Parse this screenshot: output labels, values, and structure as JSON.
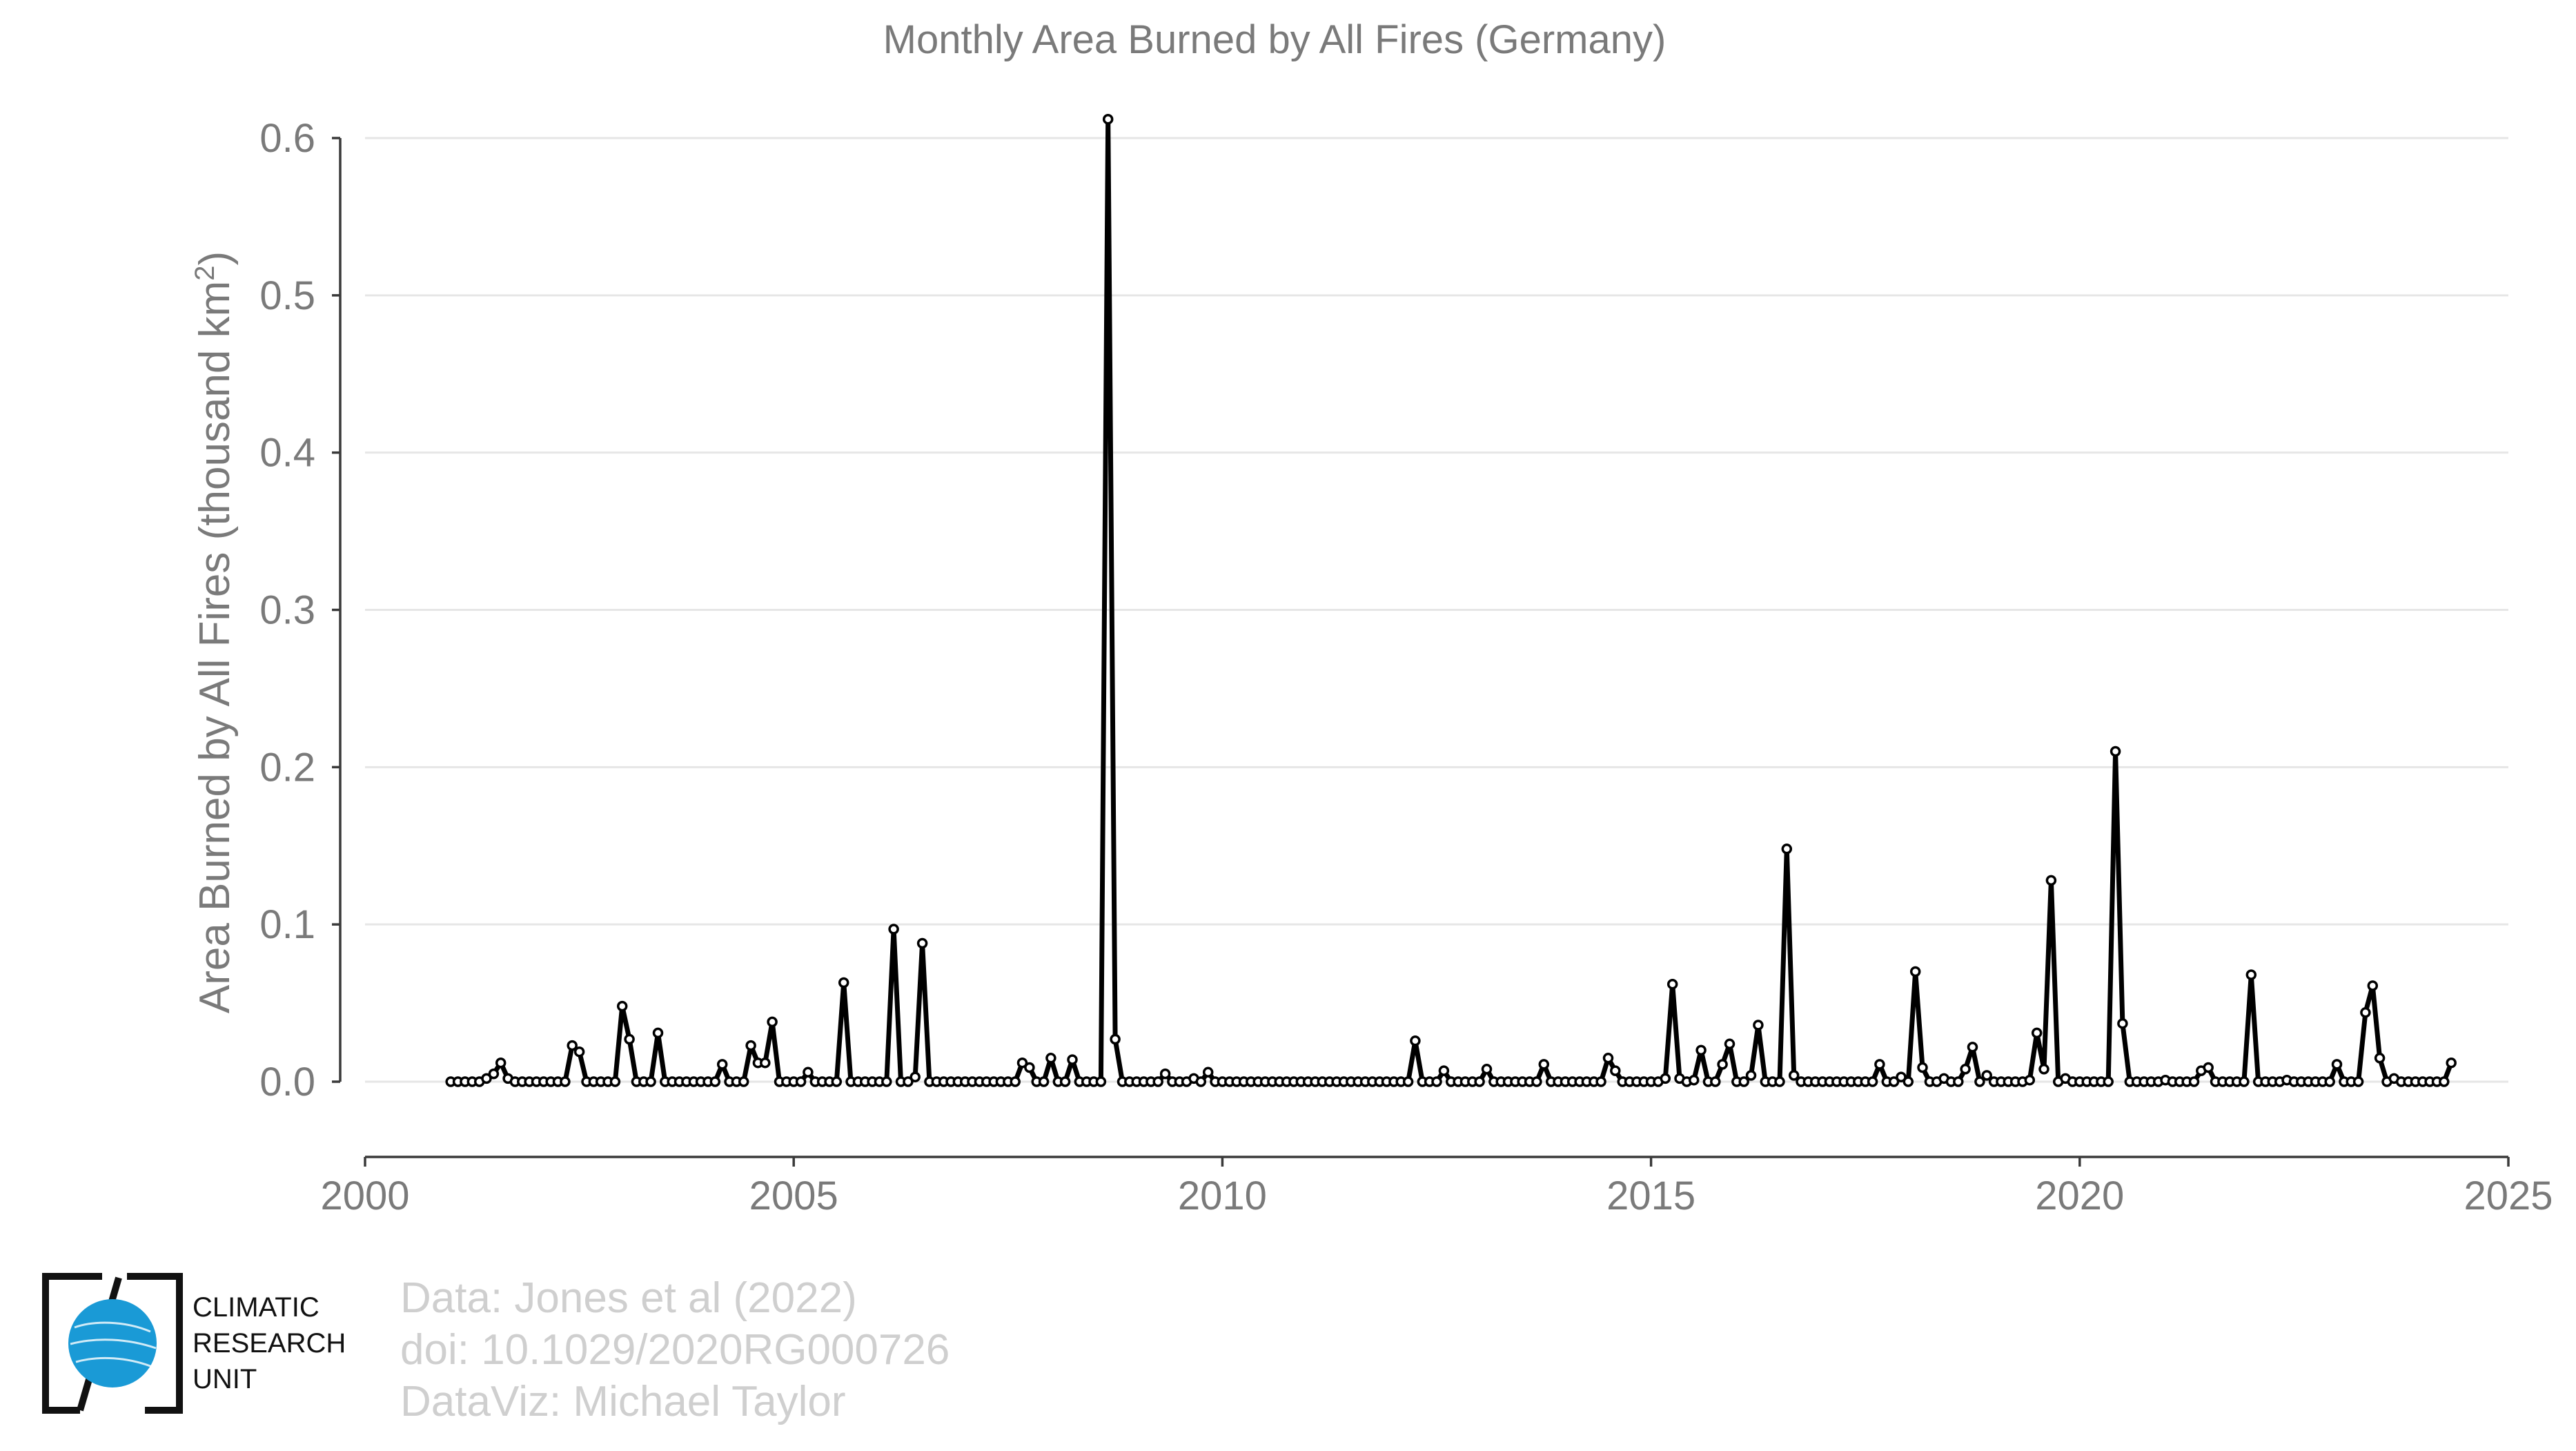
{
  "chart_data": {
    "type": "line",
    "title": "Monthly Area Burned by All Fires (Germany)",
    "ylabel_main": "Area Burned by All Fires (thousand km",
    "ylabel_sup": "2",
    "ylabel_end": ")",
    "xlim": [
      2000,
      2025
    ],
    "ylim": [
      -0.05,
      0.62
    ],
    "xticks": [
      2000,
      2005,
      2010,
      2015,
      2020,
      2025
    ],
    "xtick_labels": [
      "2000",
      "2005",
      "2010",
      "2015",
      "2020",
      "2025"
    ],
    "yticks": [
      0.0,
      0.1,
      0.2,
      0.3,
      0.4,
      0.5,
      0.6
    ],
    "ytick_labels": [
      "0.0",
      "0.1",
      "0.2",
      "0.3",
      "0.4",
      "0.5",
      "0.6"
    ],
    "grid": "horizontal",
    "series": [
      {
        "color": "#000000",
        "x_start": "2001-01",
        "frequency": "monthly",
        "values": [
          0,
          0,
          0,
          0,
          0,
          0.002,
          0.005,
          0.012,
          0.002,
          0,
          0,
          0,
          0,
          0,
          0,
          0,
          0,
          0.023,
          0.019,
          0,
          0,
          0,
          0,
          0,
          0.048,
          0.027,
          0,
          0,
          0,
          0.031,
          0,
          0,
          0,
          0,
          0,
          0,
          0,
          0,
          0.011,
          0,
          0,
          0,
          0.023,
          0.012,
          0.012,
          0.038,
          0,
          0,
          0,
          0,
          0.006,
          0,
          0,
          0,
          0,
          0.063,
          0,
          0,
          0,
          0,
          0,
          0,
          0.097,
          0,
          0,
          0.003,
          0.088,
          0,
          0,
          0,
          0,
          0,
          0,
          0,
          0,
          0,
          0,
          0,
          0,
          0,
          0.012,
          0.009,
          0,
          0,
          0.015,
          0,
          0,
          0.014,
          0,
          0,
          0,
          0,
          0.612,
          0.027,
          0,
          0,
          0,
          0,
          0,
          0,
          0.005,
          0,
          0,
          0,
          0.002,
          0,
          0.006,
          0,
          0,
          0,
          0,
          0,
          0,
          0,
          0,
          0,
          0,
          0,
          0,
          0,
          0,
          0,
          0,
          0,
          0,
          0,
          0,
          0,
          0,
          0,
          0,
          0,
          0,
          0,
          0,
          0.026,
          0,
          0,
          0,
          0.007,
          0,
          0,
          0,
          0,
          0,
          0.008,
          0,
          0,
          0,
          0,
          0,
          0,
          0,
          0.011,
          0,
          0,
          0,
          0,
          0,
          0,
          0,
          0,
          0.015,
          0.007,
          0,
          0,
          0,
          0,
          0,
          0,
          0.002,
          0.062,
          0.002,
          0,
          0.001,
          0.02,
          0,
          0,
          0.011,
          0.024,
          0,
          0,
          0.004,
          0.036,
          0,
          0,
          0,
          0.148,
          0.004,
          0,
          0,
          0,
          0,
          0,
          0,
          0,
          0,
          0,
          0,
          0,
          0.011,
          0,
          0,
          0.003,
          0,
          0.07,
          0.009,
          0,
          0,
          0.002,
          0,
          0,
          0.008,
          0.022,
          0,
          0.004,
          0,
          0,
          0,
          0,
          0,
          0.001,
          0.031,
          0.008,
          0.128,
          0,
          0.002,
          0,
          0,
          0,
          0,
          0,
          0,
          0.21,
          0.037,
          0,
          0,
          0,
          0,
          0,
          0.001,
          0,
          0,
          0,
          0,
          0.007,
          0.009,
          0,
          0,
          0,
          0,
          0,
          0.068,
          0,
          0,
          0,
          0,
          0.001,
          0,
          0,
          0,
          0,
          0,
          0,
          0.011,
          0,
          0,
          0,
          0.044,
          0.061,
          0.015,
          0,
          0.002,
          0,
          0,
          0,
          0,
          0,
          0,
          0,
          0.012
        ]
      }
    ]
  },
  "credits": {
    "line1": "Data: Jones et al (2022)",
    "line2": "doi: 10.1029/2020RG000726",
    "line3": "DataViz: Michael Taylor"
  },
  "logo": {
    "line1": "CLIMATIC",
    "line2": "RESEARCH",
    "line3": "UNIT",
    "globe_color": "#1a9ad6"
  }
}
